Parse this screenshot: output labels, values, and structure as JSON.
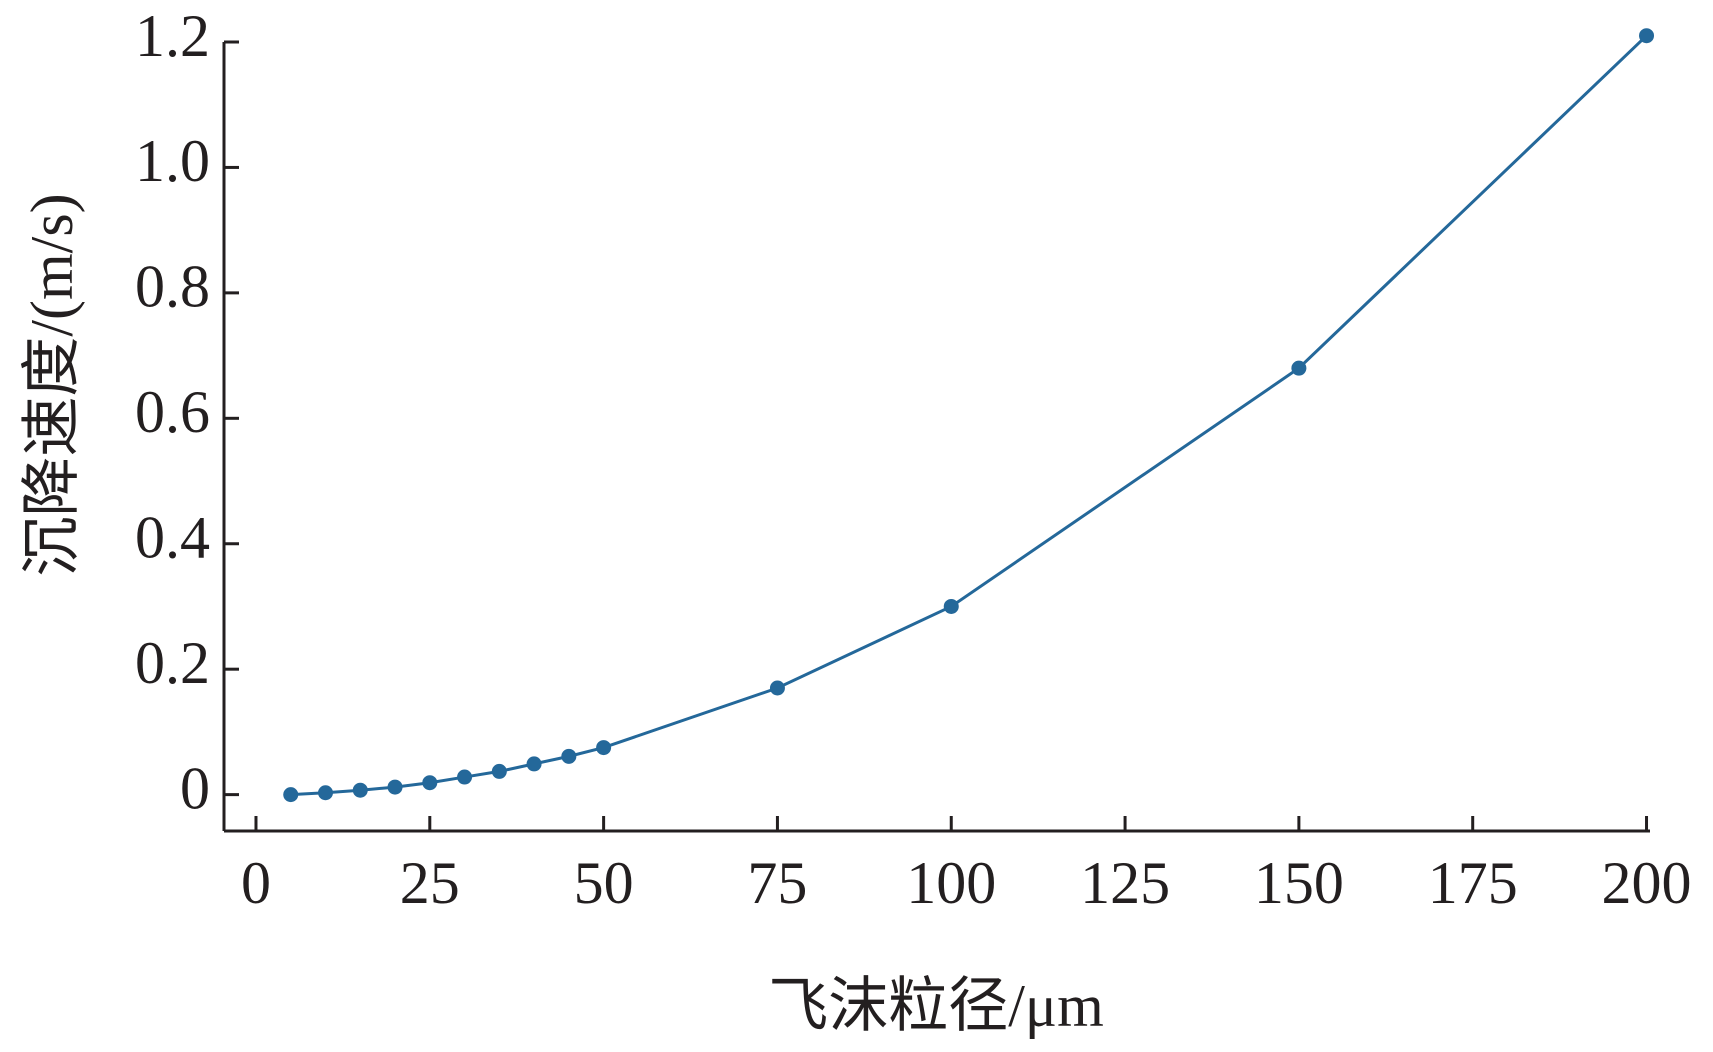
{
  "chart_data": {
    "type": "line",
    "xlabel": "飞沫粒径/μm",
    "ylabel": "沉降速度/(m/s)",
    "x": [
      5,
      10,
      15,
      20,
      25,
      30,
      35,
      40,
      45,
      50,
      75,
      100,
      150,
      200
    ],
    "series": [
      {
        "color": "#24689a",
        "values": [
          0.0,
          0.003,
          0.007,
          0.012,
          0.019,
          0.028,
          0.037,
          0.049,
          0.061,
          0.075,
          0.17,
          0.3,
          0.68,
          1.21
        ]
      }
    ],
    "xlim": [
      -4.6,
      200.5
    ],
    "ylim": [
      -0.058,
      1.2
    ],
    "xticks": [
      0,
      25,
      50,
      75,
      100,
      125,
      150,
      175,
      200
    ],
    "yticks": [
      0,
      0.2,
      0.4,
      0.6,
      0.8,
      {
        "value": 1,
        "label": "1.0"
      },
      1.2
    ]
  }
}
